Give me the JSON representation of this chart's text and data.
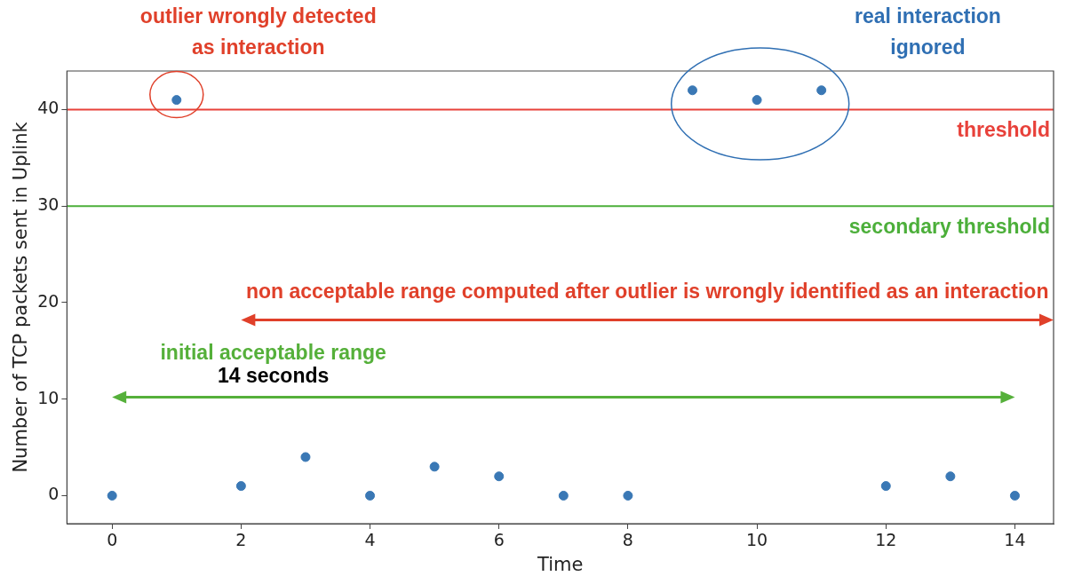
{
  "chart_data": {
    "type": "scatter",
    "xlabel": "Time",
    "ylabel": "Number of TCP packets sent in Uplink",
    "x": [
      0,
      1,
      2,
      3,
      4,
      5,
      6,
      7,
      8,
      9,
      10,
      11,
      12,
      13,
      14
    ],
    "series": [
      {
        "color": "#3a78b5",
        "values": [
          0,
          41,
          1,
          4,
          0,
          3,
          2,
          0,
          0,
          42,
          41,
          42,
          1,
          2,
          0
        ]
      }
    ],
    "xlim": [
      -0.7,
      14.6
    ],
    "ylim": [
      -2.9,
      44
    ],
    "xticks": [
      0,
      2,
      4,
      6,
      8,
      10,
      12,
      14
    ],
    "yticks": [
      0,
      10,
      20,
      30,
      40
    ],
    "grid": false,
    "legend": false,
    "marker": "circle",
    "ref_lines": [
      {
        "axis": "y",
        "value": 40,
        "label": "threshold",
        "color": "#e8413a"
      },
      {
        "axis": "y",
        "value": 30,
        "label": "secondary threshold",
        "color": "#4caf3a"
      }
    ],
    "annotations": [
      {
        "text": "outlier wrongly detected\nas interaction",
        "x": 1,
        "y": 41
      },
      "real interaction\nignored",
      "non acceptable range computed after outlier is wrongly identified as an interaction",
      "initial acceptable range",
      "14 seconds"
    ]
  }
}
